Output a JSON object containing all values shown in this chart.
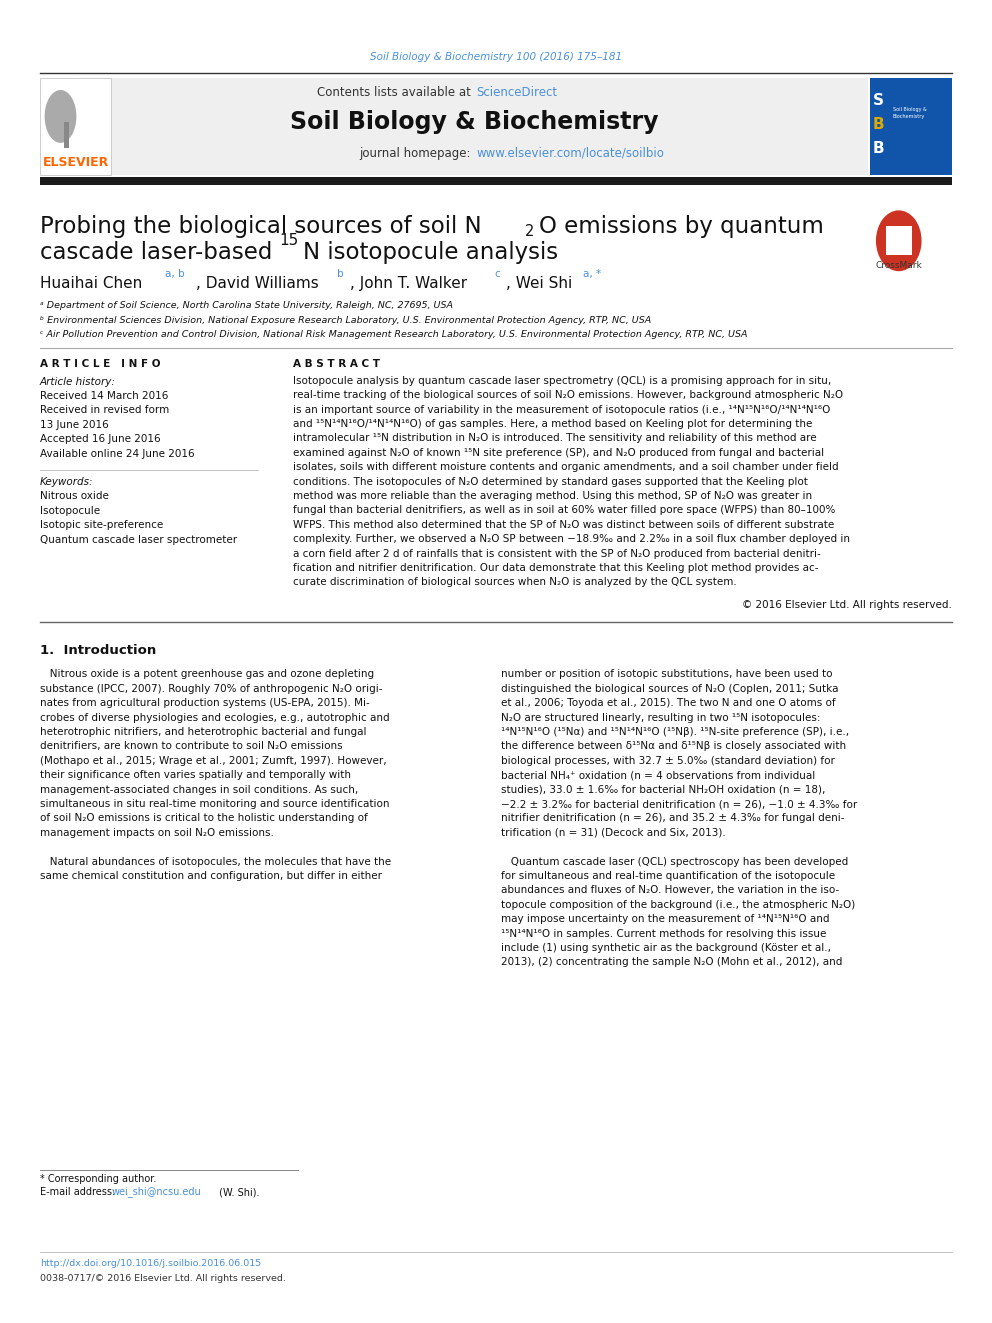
{
  "bg_color": "#ffffff",
  "page_width": 9.92,
  "page_height": 13.23,
  "top_citation": "Soil Biology & Biochemistry 100 (2016) 175–181",
  "top_citation_color": "#4a90d9",
  "header_bg_color": "#efefef",
  "elsevier_text": "ELSEVIER",
  "elsevier_color": "#ff6600",
  "journal_title": "Soil Biology & Biochemistry",
  "contents_text": "Contents lists available at ",
  "sciencedirect_text": "ScienceDirect",
  "sciencedirect_color": "#4a90d9",
  "homepage_text": "journal homepage: ",
  "homepage_url": "www.elsevier.com/locate/soilbio",
  "homepage_url_color": "#4a90d9",
  "dark_bar_color": "#1a1a1a",
  "affil1": "ᵃ Department of Soil Science, North Carolina State University, Raleigh, NC, 27695, USA",
  "affil2": "ᵇ Environmental Sciences Division, National Exposure Research Laboratory, U.S. Environmental Protection Agency, RTP, NC, USA",
  "affil3": "ᶜ Air Pollution Prevention and Control Division, National Risk Management Research Laboratory, U.S. Environmental Protection Agency, RTP, NC, USA",
  "article_history_label": "Article history:",
  "received_label": "Received 14 March 2016",
  "revised_label": "Received in revised form",
  "revised_date": "13 June 2016",
  "accepted_label": "Accepted 16 June 2016",
  "online_label": "Available online 24 June 2016",
  "keywords_label": "Keywords:",
  "kw1": "Nitrous oxide",
  "kw2": "Isotopocule",
  "kw3": "Isotopic site-preference",
  "kw4": "Quantum cascade laser spectrometer",
  "copyright_text": "© 2016 Elsevier Ltd. All rights reserved.",
  "intro_heading": "1.  Introduction",
  "footnote_star": "* Corresponding author.",
  "footnote_email_label": "E-mail address: ",
  "footnote_email": "wei_shi@ncsu.edu",
  "footnote_email_color": "#4a90d9",
  "footnote_email_end": " (W. Shi).",
  "doi_text": "http://dx.doi.org/10.1016/j.soilbio.2016.06.015",
  "doi_color": "#4a90d9",
  "issn_text": "0038-0717/© 2016 Elsevier Ltd. All rights reserved."
}
